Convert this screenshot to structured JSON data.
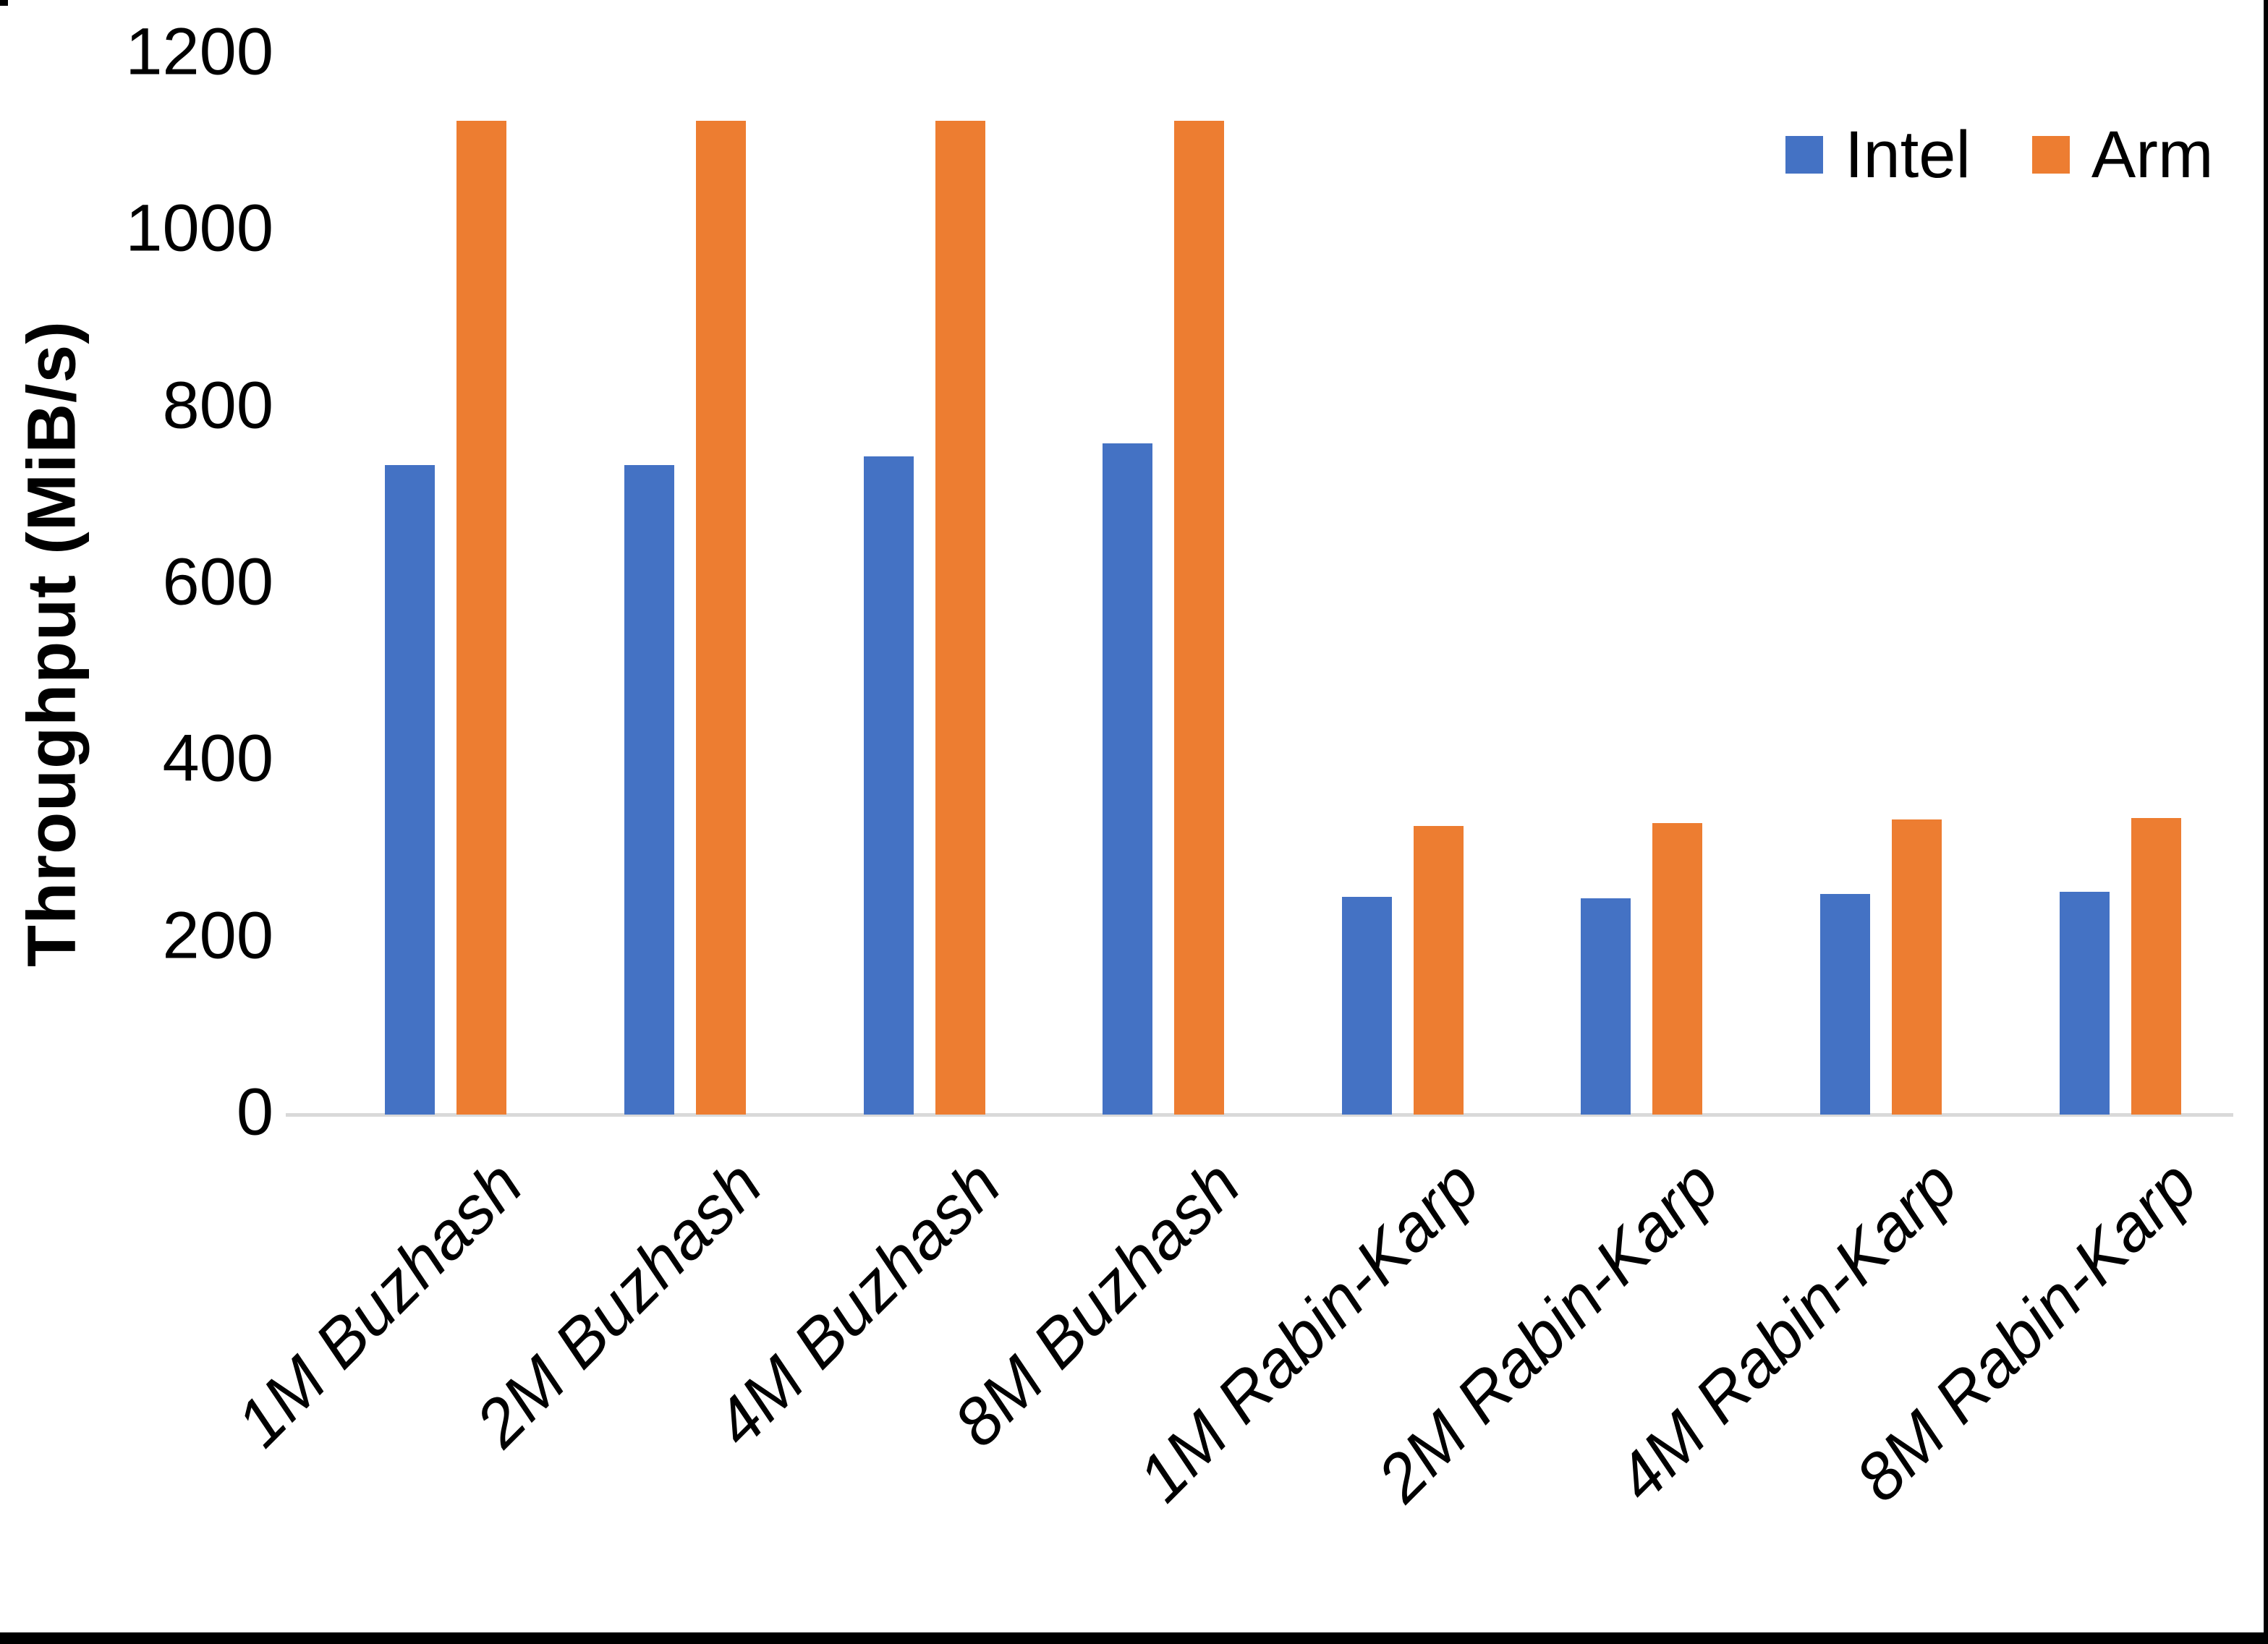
{
  "y_axis": {
    "title": "Throughput (MiB/s)",
    "ticks": [
      0,
      200,
      400,
      600,
      800,
      1000,
      1200
    ]
  },
  "legend": {
    "items": [
      {
        "label": "Intel",
        "color": "#4472C4"
      },
      {
        "label": "Arm",
        "color": "#ED7D31"
      }
    ]
  },
  "chart_data": {
    "type": "bar",
    "title": "",
    "xlabel": "",
    "ylabel": "Throughput (MiB/s)",
    "ylim": [
      0,
      1200
    ],
    "grid": false,
    "legend_position": "top-right",
    "categories": [
      "1M Buzhash",
      "2M Buzhash",
      "4M Buzhash",
      "8M Buzhash",
      "1M Rabin-Karp",
      "2M Rabin-Karp",
      "4M Rabin-Karp",
      "8M Rabin-Karp"
    ],
    "series": [
      {
        "name": "Intel",
        "color": "#4472C4",
        "values": [
          735,
          735,
          745,
          760,
          246,
          245,
          250,
          252
        ]
      },
      {
        "name": "Arm",
        "color": "#ED7D31",
        "values": [
          1125,
          1125,
          1125,
          1125,
          327,
          330,
          334,
          336
        ]
      }
    ]
  },
  "colors": {
    "background": "#FFFFFF",
    "axis_line": "#D9D9D9",
    "frame_border": "#000000",
    "text": "#000000"
  }
}
